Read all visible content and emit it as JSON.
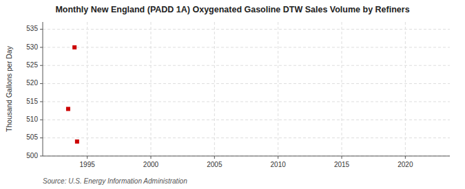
{
  "chart_data": {
    "type": "scatter",
    "title": "Monthly New England (PADD 1A) Oxygenated Gasoline DTW Sales Volume by Refiners",
    "y_label": "Thousand Gallons per Day",
    "source": "Source: U.S. Energy Information Administration",
    "x": [
      1993.5,
      1994.0,
      1994.2
    ],
    "values": [
      513.0,
      530.0,
      504.0
    ],
    "color": "#cc0000",
    "marker": "square",
    "xlim": [
      1991.5,
      2023.5
    ],
    "ylim": [
      500,
      537
    ],
    "xticks": [
      1995,
      2000,
      2005,
      2010,
      2015,
      2020
    ],
    "yticks": [
      500,
      505,
      510,
      515,
      520,
      525,
      530,
      535
    ],
    "grid": true
  }
}
